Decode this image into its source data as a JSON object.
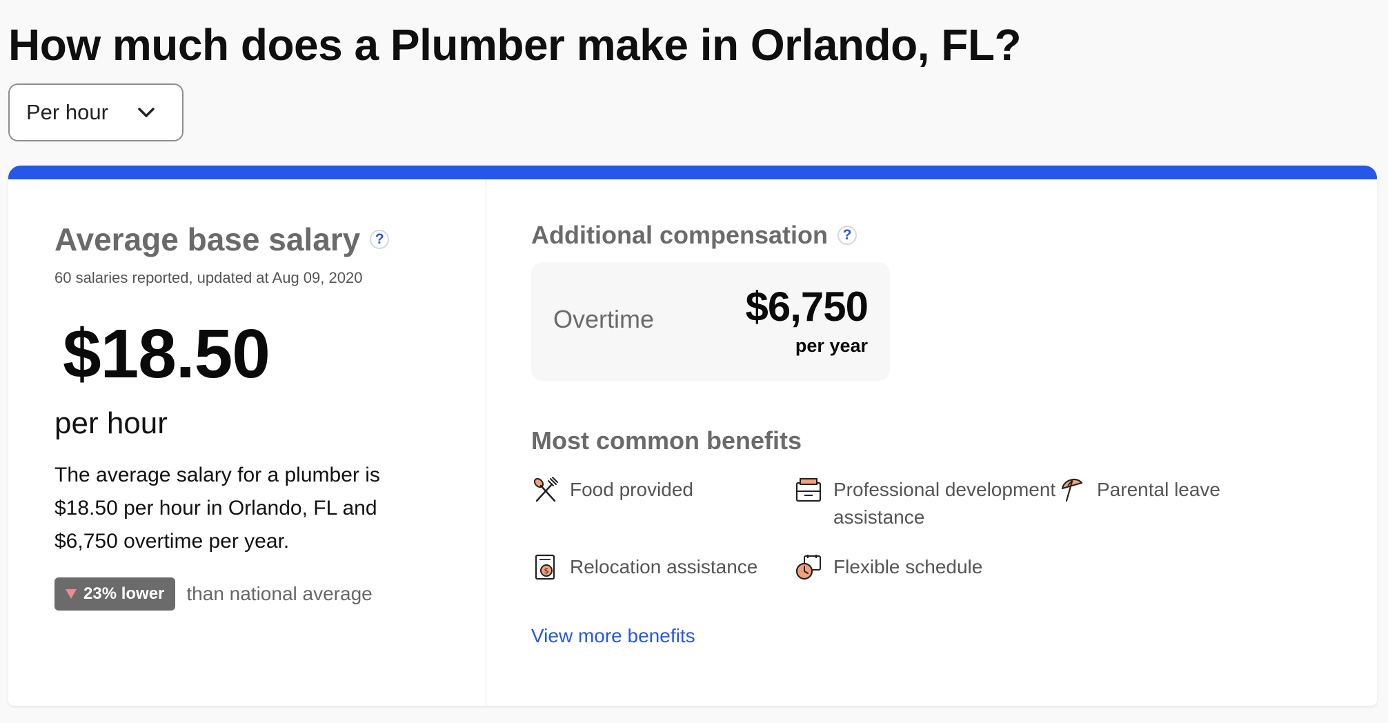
{
  "page": {
    "title": "How much does a Plumber make in Orlando, FL?"
  },
  "period_select": {
    "selected": "Per hour"
  },
  "base_salary": {
    "heading": "Average base salary",
    "help": "?",
    "meta": "60 salaries reported, updated at Aug 09, 2020",
    "amount": "$18.50",
    "unit": "per hour",
    "summary": "The average salary for a plumber is $18.50 per hour in Orlando, FL and $6,750 overtime per year.",
    "comparison_badge": "23% lower",
    "comparison_text": "than national average"
  },
  "additional_compensation": {
    "heading": "Additional compensation",
    "help": "?",
    "items": [
      {
        "label": "Overtime",
        "value": "$6,750",
        "unit": "per year"
      }
    ]
  },
  "benefits": {
    "heading": "Most common benefits",
    "items": [
      {
        "label": "Food provided",
        "icon": "food-icon"
      },
      {
        "label": "Professional development assistance",
        "icon": "briefcase-icon"
      },
      {
        "label": "Parental leave",
        "icon": "umbrella-icon"
      },
      {
        "label": "Relocation assistance",
        "icon": "relocation-document-icon"
      },
      {
        "label": "Flexible schedule",
        "icon": "flexible-schedule-icon"
      }
    ],
    "view_more": "View more benefits"
  },
  "colors": {
    "accent_blue": "#2557e8",
    "badge_gray": "#6b6b6b",
    "down_arrow": "#f08a8a",
    "icon_orange": "#f0a27a"
  }
}
